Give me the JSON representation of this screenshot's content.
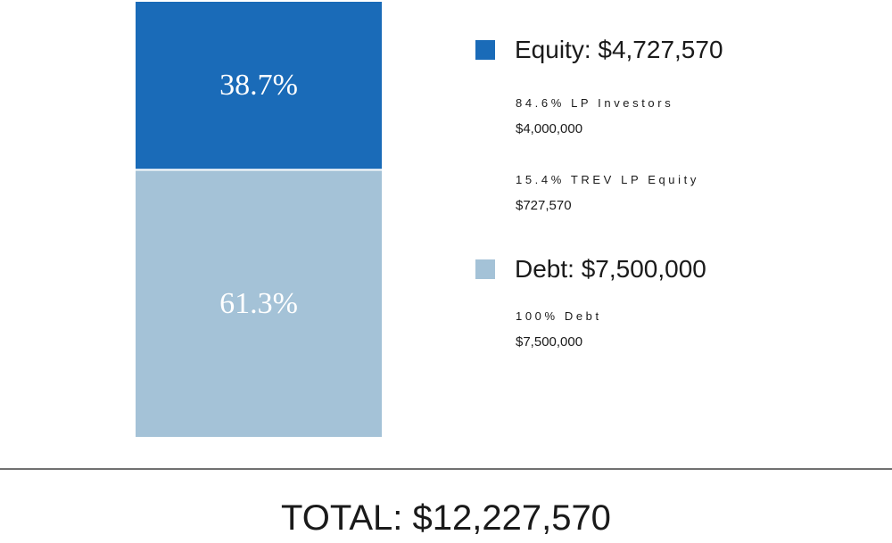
{
  "chart_data": {
    "type": "bar",
    "stacked": true,
    "categories": [
      ""
    ],
    "series": [
      {
        "name": "Equity",
        "value": 4727570,
        "percent_label": "38.7%",
        "color": "#1a6bb8"
      },
      {
        "name": "Debt",
        "value": 7500000,
        "percent_label": "61.3%",
        "color": "#a4c2d7"
      }
    ],
    "total": 12227570,
    "title": "",
    "xlabel": "",
    "ylabel": "",
    "grid": false,
    "legend_position": "right"
  },
  "legend": {
    "equity": {
      "label": "Equity: $4,727,570",
      "color": "#1a6bb8",
      "items": [
        {
          "pct": "84.6% LP Investors",
          "value": "$4,000,000"
        },
        {
          "pct": "15.4% TREV LP Equity",
          "value": "$727,570"
        }
      ]
    },
    "debt": {
      "label": "Debt: $7,500,000",
      "color": "#a4c2d7",
      "items": [
        {
          "pct": "100% Debt",
          "value": "$7,500,000"
        }
      ]
    }
  },
  "total_label": "TOTAL: $12,227,570"
}
